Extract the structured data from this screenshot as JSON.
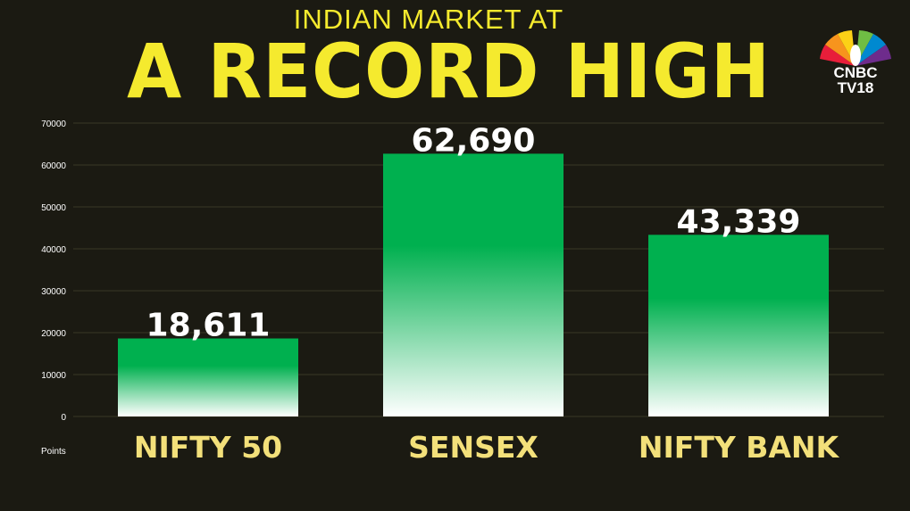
{
  "header": {
    "subtitle": "INDIAN MARKET AT",
    "title": "A RECORD HIGH"
  },
  "logo": {
    "brand": "CNBC",
    "channel": "TV18",
    "icon": "peacock-icon"
  },
  "chart_data": {
    "type": "bar",
    "title": "A RECORD HIGH",
    "subtitle": "INDIAN MARKET AT",
    "categories": [
      "NIFTY 50",
      "SENSEX",
      "NIFTY BANK"
    ],
    "values": [
      18611,
      62690,
      43339
    ],
    "value_labels": [
      "18,611",
      "62,690",
      "43,339"
    ],
    "ylabel": "Points",
    "ylim": [
      0,
      70000
    ],
    "yticks": [
      0,
      10000,
      20000,
      30000,
      40000,
      50000,
      60000,
      70000
    ],
    "grid": true,
    "legend": "none"
  },
  "colors": {
    "background": "#1b1a12",
    "title": "#f5ea2e",
    "category_label": "#f3e07a",
    "bar_top": "#00b04f",
    "bar_bottom": "#ffffff",
    "grid": "#3a3826"
  }
}
